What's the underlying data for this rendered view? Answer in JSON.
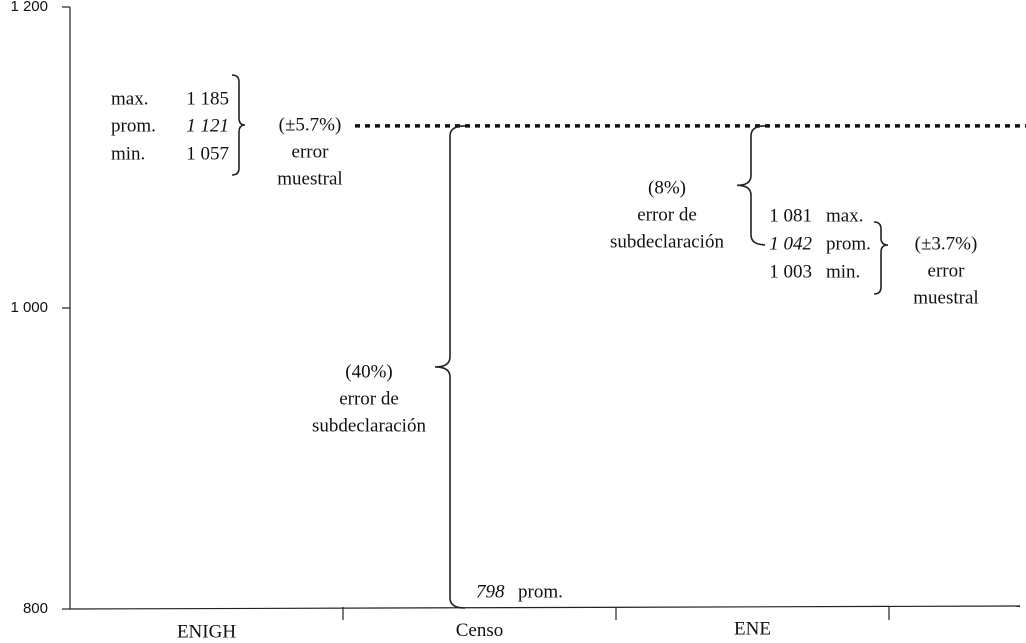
{
  "chart_data": {
    "type": "estimate-comparison",
    "ylim": [
      800,
      1200
    ],
    "yticks": [
      800,
      {
        "value": 1000,
        "label": "1 000"
      },
      {
        "value": 1200,
        "label": "1 200"
      }
    ],
    "categories": [
      "ENIGH",
      "Censo",
      "ENE"
    ],
    "series": [
      {
        "name": "max.",
        "values": [
          1185,
          null,
          1081
        ],
        "value_labels": [
          "1 185",
          null,
          "1 081"
        ]
      },
      {
        "name": "prom.",
        "values": [
          1121,
          798,
          1042
        ],
        "value_labels": [
          "1 121",
          "798",
          "1 042"
        ]
      },
      {
        "name": "min.",
        "values": [
          1057,
          null,
          1003
        ],
        "value_labels": [
          "1 057",
          null,
          "1 003"
        ]
      }
    ],
    "annotations": [
      {
        "label": "(±5.7%)",
        "lines": [
          "error",
          "muestral"
        ]
      },
      {
        "label": "(40%)",
        "lines": [
          "error de",
          "subdeclaración"
        ]
      },
      {
        "label": "(8%)",
        "lines": [
          "error de",
          "subdeclaración"
        ]
      },
      {
        "label": "(±3.7%)",
        "lines": [
          "error",
          "muestral"
        ]
      }
    ]
  }
}
